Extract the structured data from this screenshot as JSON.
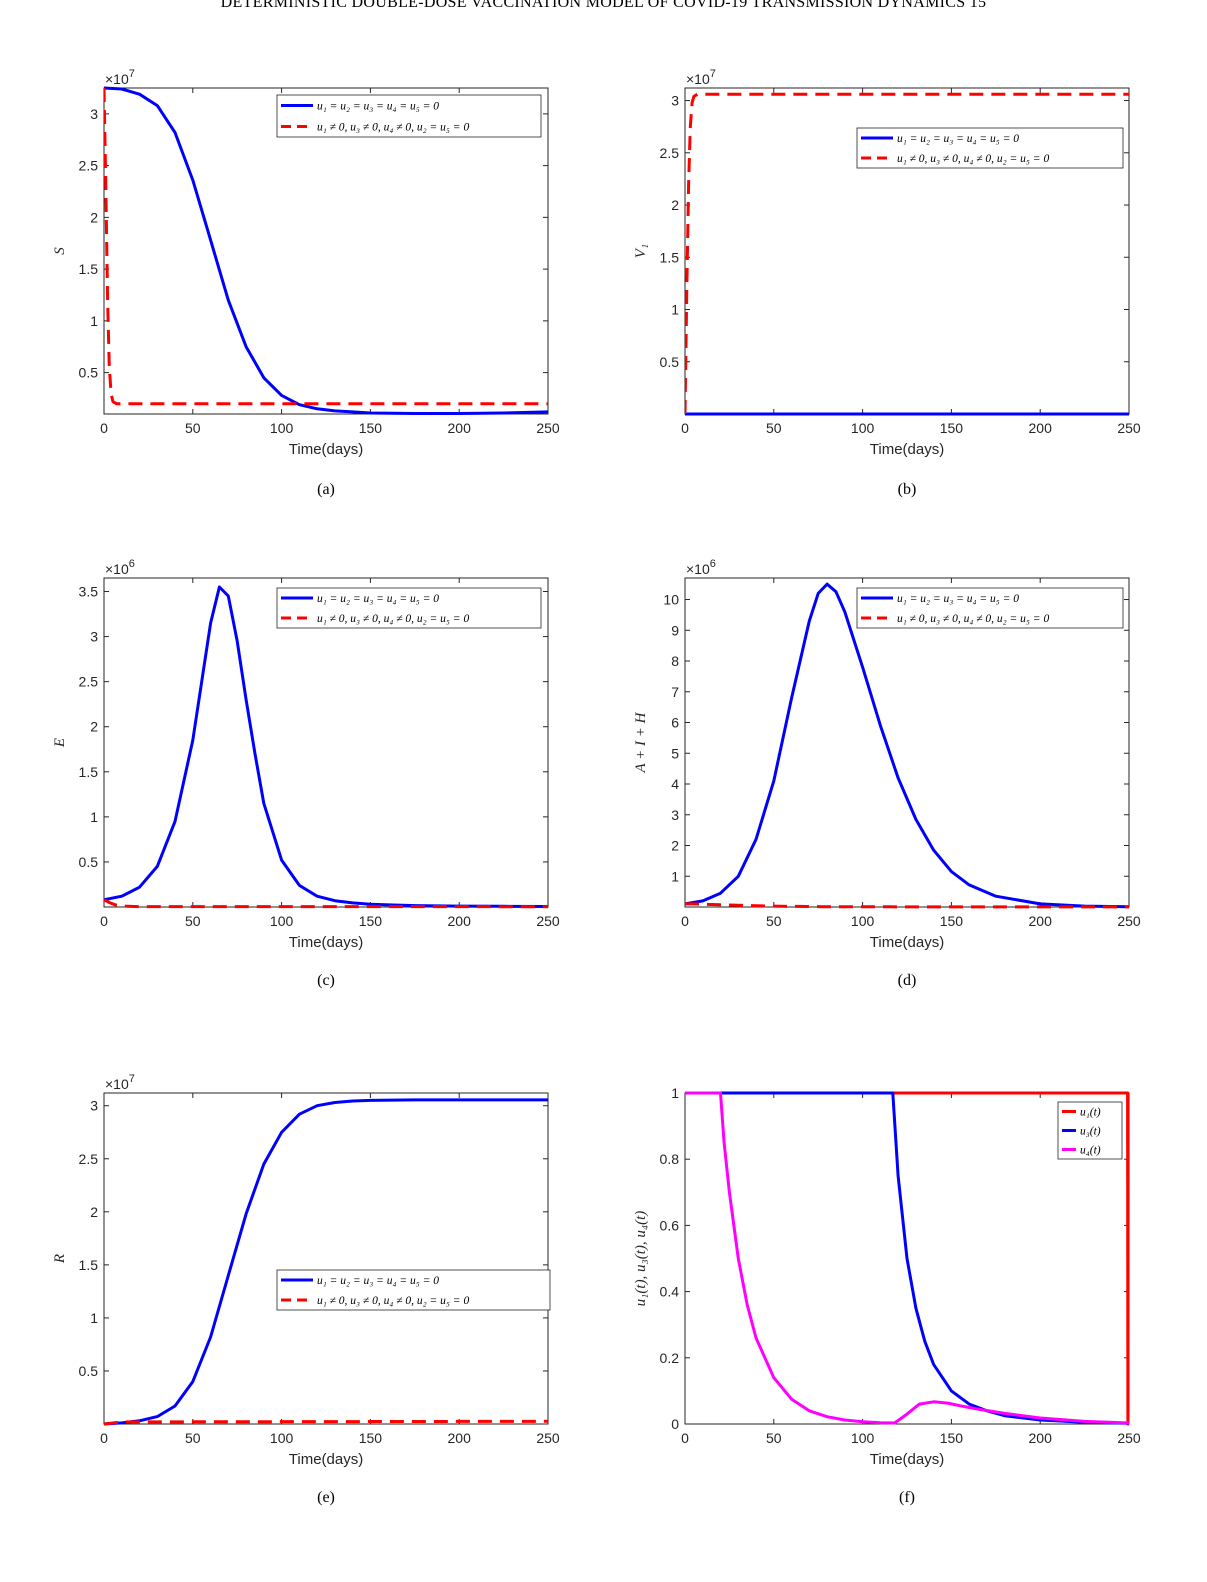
{
  "header": {
    "text": "DETERMINISTIC DOUBLE-DOSE VACCINATION MODEL OF COVID-19 TRANSMISSION DYNAMICS 15"
  },
  "colors": {
    "no_control": "#0000ff",
    "control": "#ff0000",
    "u1": "#ff0000",
    "u3": "#0000ff",
    "u4": "#ff00ff",
    "axis": "#262626"
  },
  "chart_data": [
    {
      "caption": "(a)",
      "type": "line",
      "ylabel": "S",
      "xlabel": "Time(days)",
      "exponent": "7",
      "xlim": [
        0,
        250
      ],
      "ylim": [
        0.1,
        3.25
      ],
      "xticks": [
        0,
        50,
        100,
        150,
        200,
        250
      ],
      "yticks": [
        0.5,
        1,
        1.5,
        2,
        2.5,
        3
      ],
      "xtick_labels": [
        "0",
        "50",
        "100",
        "150",
        "200",
        "250"
      ],
      "ytick_labels": [
        "0.5",
        "1",
        "1.5",
        "2",
        "2.5",
        "3"
      ],
      "legend_position": "top-right",
      "series": [
        {
          "name": "u₁ = u₂ = u₃ = u₄ = u₅ = 0",
          "style": "solid",
          "x": [
            0,
            10,
            20,
            30,
            40,
            50,
            60,
            70,
            80,
            90,
            100,
            110,
            120,
            130,
            140,
            150,
            175,
            200,
            225,
            250
          ],
          "y": [
            3.25,
            3.24,
            3.19,
            3.08,
            2.82,
            2.36,
            1.78,
            1.2,
            0.75,
            0.45,
            0.28,
            0.19,
            0.15,
            0.13,
            0.12,
            0.11,
            0.105,
            0.105,
            0.11,
            0.12
          ]
        },
        {
          "name": "u₁ ≠ 0,  u₃ ≠ 0,  u₄ ≠ 0,  u₂ = u₅ = 0",
          "style": "dashed",
          "x": [
            0,
            1,
            2,
            3,
            4,
            5,
            7,
            250
          ],
          "y": [
            3.25,
            2.3,
            1.2,
            0.55,
            0.3,
            0.22,
            0.2,
            0.2
          ]
        }
      ]
    },
    {
      "caption": "(b)",
      "type": "line",
      "ylabel": "V₁",
      "xlabel": "Time(days)",
      "exponent": "7",
      "xlim": [
        0,
        250
      ],
      "ylim": [
        0,
        3.12
      ],
      "xticks": [
        0,
        50,
        100,
        150,
        200,
        250
      ],
      "yticks": [
        0.5,
        1,
        1.5,
        2,
        2.5,
        3
      ],
      "xtick_labels": [
        "0",
        "50",
        "100",
        "150",
        "200",
        "250"
      ],
      "ytick_labels": [
        "0.5",
        "1",
        "1.5",
        "2",
        "2.5",
        "3"
      ],
      "legend_position": "upper-right",
      "series": [
        {
          "name": "u₁ = u₂ = u₃ = u₄ = u₅ = 0",
          "style": "solid",
          "x": [
            0,
            250
          ],
          "y": [
            0.0,
            0.0
          ]
        },
        {
          "name": "u₁ ≠ 0,  u₃ ≠ 0,  u₄ ≠ 0,  u₂ = u₅ = 0",
          "style": "dashed",
          "x": [
            0,
            1,
            2,
            3,
            4,
            5,
            7,
            250
          ],
          "y": [
            0.0,
            1.2,
            2.2,
            2.75,
            2.98,
            3.04,
            3.06,
            3.06
          ]
        }
      ]
    },
    {
      "caption": "(c)",
      "type": "line",
      "ylabel": "E",
      "xlabel": "Time(days)",
      "exponent": "6",
      "xlim": [
        0,
        250
      ],
      "ylim": [
        0,
        3.65
      ],
      "xticks": [
        0,
        50,
        100,
        150,
        200,
        250
      ],
      "yticks": [
        0.5,
        1,
        1.5,
        2,
        2.5,
        3,
        3.5
      ],
      "xtick_labels": [
        "0",
        "50",
        "100",
        "150",
        "200",
        "250"
      ],
      "ytick_labels": [
        "0.5",
        "1",
        "1.5",
        "2",
        "2.5",
        "3",
        "3.5"
      ],
      "legend_position": "top-right",
      "series": [
        {
          "name": "u₁ = u₂ = u₃ = u₄ = u₅ = 0",
          "style": "solid",
          "x": [
            0,
            10,
            20,
            30,
            40,
            50,
            55,
            60,
            65,
            70,
            75,
            80,
            85,
            90,
            100,
            110,
            120,
            130,
            140,
            150,
            175,
            200,
            225,
            250
          ],
          "y": [
            0.08,
            0.12,
            0.22,
            0.45,
            0.95,
            1.85,
            2.5,
            3.15,
            3.55,
            3.45,
            2.95,
            2.3,
            1.7,
            1.15,
            0.52,
            0.24,
            0.12,
            0.07,
            0.045,
            0.03,
            0.015,
            0.01,
            0.008,
            0.006
          ]
        },
        {
          "name": "u₁ ≠ 0,  u₃ ≠ 0,  u₄ ≠ 0,  u₂ = u₅ = 0",
          "style": "dashed",
          "x": [
            0,
            3,
            6,
            10,
            20,
            250
          ],
          "y": [
            0.08,
            0.05,
            0.025,
            0.01,
            0.004,
            0.003
          ]
        }
      ]
    },
    {
      "caption": "(d)",
      "type": "line",
      "ylabel": "A + I + H",
      "xlabel": "Time(days)",
      "exponent": "6",
      "xlim": [
        0,
        250
      ],
      "ylim": [
        0,
        10.7
      ],
      "xticks": [
        0,
        50,
        100,
        150,
        200,
        250
      ],
      "yticks": [
        1,
        2,
        3,
        4,
        5,
        6,
        7,
        8,
        9,
        10
      ],
      "xtick_labels": [
        "0",
        "50",
        "100",
        "150",
        "200",
        "250"
      ],
      "ytick_labels": [
        "1",
        "2",
        "3",
        "4",
        "5",
        "6",
        "7",
        "8",
        "9",
        "10"
      ],
      "legend_position": "top-right",
      "series": [
        {
          "name": "u₁ = u₂ = u₃ = u₄ = u₅ = 0",
          "style": "solid",
          "x": [
            0,
            10,
            20,
            30,
            40,
            50,
            60,
            70,
            75,
            80,
            85,
            90,
            100,
            110,
            120,
            130,
            140,
            150,
            160,
            175,
            200,
            225,
            250
          ],
          "y": [
            0.1,
            0.2,
            0.45,
            1.0,
            2.2,
            4.1,
            6.8,
            9.3,
            10.2,
            10.5,
            10.25,
            9.6,
            7.8,
            5.9,
            4.2,
            2.85,
            1.85,
            1.15,
            0.72,
            0.35,
            0.1,
            0.03,
            0.01
          ]
        },
        {
          "name": "u₁ ≠ 0,  u₃ ≠ 0,  u₄ ≠ 0,  u₂ = u₅ = 0",
          "style": "dashed",
          "x": [
            0,
            5,
            10,
            20,
            40,
            60,
            80,
            100,
            250
          ],
          "y": [
            0.1,
            0.1,
            0.09,
            0.07,
            0.04,
            0.02,
            0.01,
            0.005,
            0.003
          ]
        }
      ]
    },
    {
      "caption": "(e)",
      "type": "line",
      "ylabel": "R",
      "xlabel": "Time(days)",
      "exponent": "7",
      "xlim": [
        0,
        250
      ],
      "ylim": [
        0,
        3.12
      ],
      "xticks": [
        0,
        50,
        100,
        150,
        200,
        250
      ],
      "yticks": [
        0.5,
        1,
        1.5,
        2,
        2.5,
        3
      ],
      "xtick_labels": [
        "0",
        "50",
        "100",
        "150",
        "200",
        "250"
      ],
      "ytick_labels": [
        "0.5",
        "1",
        "1.5",
        "2",
        "2.5",
        "3"
      ],
      "legend_position": "middle-right",
      "series": [
        {
          "name": "u₁ = u₂ = u₃ = u₄ = u₅ = 0",
          "style": "solid",
          "x": [
            0,
            10,
            20,
            30,
            40,
            50,
            60,
            70,
            80,
            90,
            100,
            110,
            120,
            130,
            140,
            150,
            175,
            200,
            225,
            250
          ],
          "y": [
            0.0,
            0.01,
            0.03,
            0.07,
            0.17,
            0.4,
            0.82,
            1.4,
            1.98,
            2.45,
            2.75,
            2.92,
            3.0,
            3.03,
            3.045,
            3.05,
            3.055,
            3.055,
            3.055,
            3.055
          ]
        },
        {
          "name": "u₁ ≠ 0,  u₃ ≠ 0,  u₄ ≠ 0,  u₂ = u₅ = 0",
          "style": "dashed",
          "x": [
            0,
            10,
            250
          ],
          "y": [
            0.0,
            0.02,
            0.025
          ]
        }
      ]
    },
    {
      "caption": "(f)",
      "type": "line",
      "ylabel": "u₁(t), u₃(t), u₄(t)",
      "xlabel": "Time(days)",
      "exponent": "",
      "xlim": [
        0,
        250
      ],
      "ylim": [
        0,
        1
      ],
      "xticks": [
        0,
        50,
        100,
        150,
        200,
        250
      ],
      "yticks": [
        0,
        0.2,
        0.4,
        0.6,
        0.8,
        1
      ],
      "xtick_labels": [
        "0",
        "50",
        "100",
        "150",
        "200",
        "250"
      ],
      "ytick_labels": [
        "0",
        "0.2",
        "0.4",
        "0.6",
        "0.8",
        "1"
      ],
      "legend_position": "top-right",
      "series": [
        {
          "name": "u₁(t)",
          "style": "solid",
          "color": "#ff0000",
          "x": [
            0,
            249.2,
            249.4,
            250
          ],
          "y": [
            1,
            1,
            0,
            0
          ]
        },
        {
          "name": "u₃(t)",
          "style": "solid",
          "color": "#0000ff",
          "x": [
            0,
            117,
            120,
            125,
            130,
            135,
            140,
            150,
            160,
            170,
            180,
            200,
            225,
            250
          ],
          "y": [
            1,
            1,
            0.75,
            0.5,
            0.35,
            0.25,
            0.18,
            0.1,
            0.06,
            0.04,
            0.025,
            0.012,
            0.005,
            0.002
          ]
        },
        {
          "name": "u₄(t)",
          "style": "solid",
          "color": "#ff00ff",
          "x": [
            0,
            20,
            22,
            25,
            30,
            35,
            40,
            50,
            60,
            70,
            80,
            90,
            100,
            110,
            118,
            125,
            132,
            140,
            148,
            155,
            165,
            180,
            200,
            225,
            250
          ],
          "y": [
            1,
            1,
            0.85,
            0.7,
            0.5,
            0.36,
            0.26,
            0.14,
            0.075,
            0.04,
            0.022,
            0.012,
            0.007,
            0.004,
            0.003,
            0.03,
            0.06,
            0.067,
            0.063,
            0.055,
            0.045,
            0.032,
            0.018,
            0.008,
            0.003
          ]
        }
      ]
    }
  ]
}
